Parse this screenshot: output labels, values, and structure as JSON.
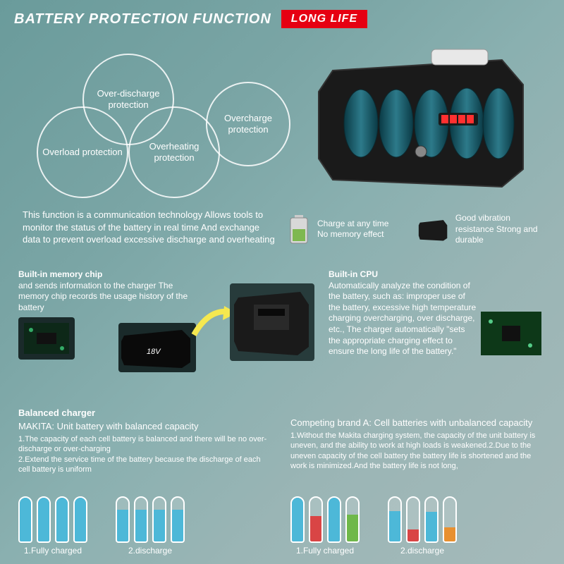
{
  "header": {
    "title": "BATTERY PROTECTION FUNCTION",
    "badge": "LONG LIFE"
  },
  "venn": {
    "c1": "Over-discharge protection",
    "c2": "Overload protection",
    "c3": "Overheating protection",
    "c4": "Overcharge protection"
  },
  "intro": "This function is a communication technology Allows tools to monitor the status of the battery in real time And exchange data to prevent overload excessive discharge and overheating",
  "feat": {
    "a": "Charge at any time No memory effect",
    "b": "Good vibration resistance Strong and durable"
  },
  "memchip": {
    "title": "Built-in memory chip",
    "body": "and sends information to the charger The memory chip records the usage history of the battery"
  },
  "cpu": {
    "title": "Built-in CPU",
    "body": "Automatically analyze the condition of the battery, such as: improper use of the battery, excessive high temperature charging overcharging, over discharge, etc., The charger automatically \"sets the appropriate charging effect to ensure the long life of the battery.\""
  },
  "left": {
    "head": "Balanced charger",
    "sub": "MAKITA: Unit battery with balanced capacity",
    "body": "1.The capacity of each cell battery is balanced and there will be no over-discharge or over-charging\n2.Extend the service time of the battery because the discharge of each cell battery is uniform"
  },
  "right": {
    "sub": "Competing brand A: Cell batteries with unbalanced capacity",
    "body": "1.Without the Makita charging system, the capacity of the unit battery is uneven, and the ability to work at high loads is weakened.2.Due to the uneven capacity of the cell battery the battery life is shortened and the work is minimized.And the battery life is not long,"
  },
  "labels": {
    "l1": "1.Fully charged",
    "l2": "2.discharge",
    "r1": "1.Fully charged",
    "r2": "2.discharge"
  },
  "colors": {
    "blue": "#4db8d8",
    "red": "#d94545",
    "green": "#6fb84a",
    "orange": "#e89030"
  },
  "cells": {
    "left1": [
      100,
      100,
      100,
      100
    ],
    "left2": [
      72,
      72,
      72,
      72
    ],
    "right1": [
      100,
      58,
      100,
      62
    ],
    "right2": [
      70,
      28,
      68,
      32
    ],
    "right1_colors": [
      "blue",
      "red",
      "blue",
      "green"
    ],
    "right2_colors": [
      "blue",
      "red",
      "blue",
      "orange"
    ]
  }
}
